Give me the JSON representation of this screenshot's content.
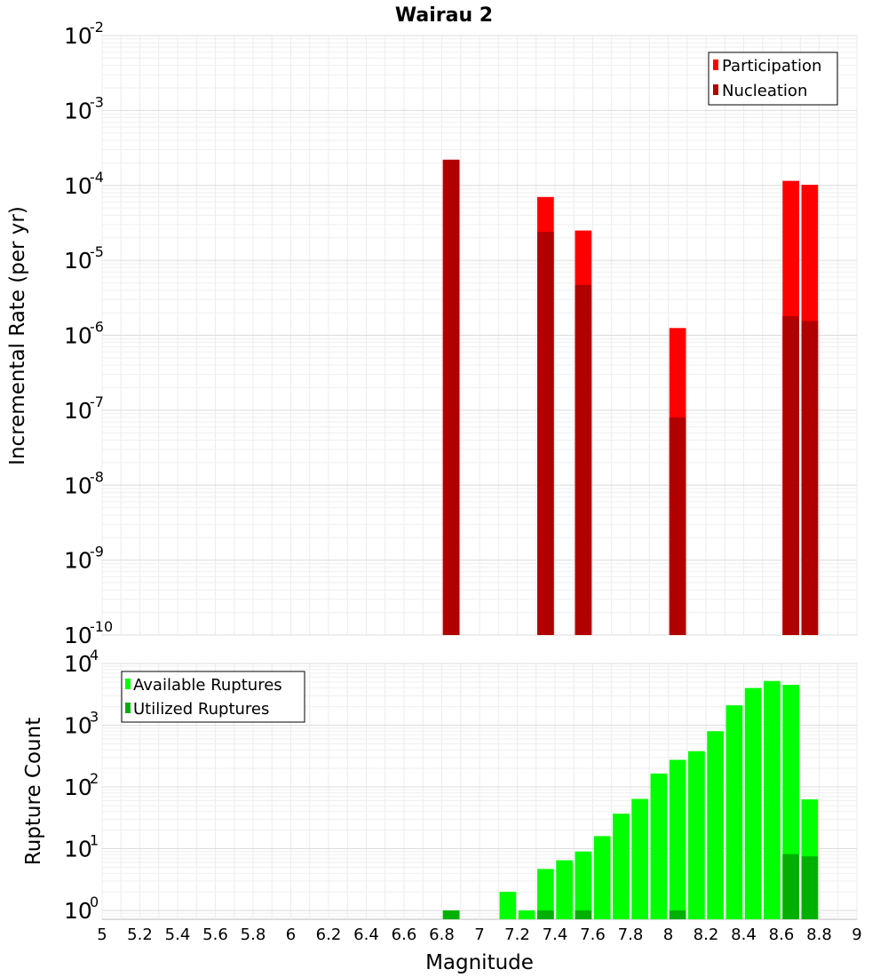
{
  "title": "Wairau 2",
  "x_axis": {
    "label": "Magnitude",
    "min": 5,
    "max": 9,
    "ticks": [
      "5",
      "5.2",
      "5.4",
      "5.6",
      "5.8",
      "6",
      "6.2",
      "6.4",
      "6.6",
      "6.8",
      "7",
      "7.2",
      "7.4",
      "7.6",
      "7.8",
      "8",
      "8.2",
      "8.4",
      "8.6",
      "8.8",
      "9"
    ]
  },
  "chart_data": [
    {
      "type": "bar",
      "panel": "top",
      "ylabel": "Incremental Rate (per yr)",
      "yscale": "log",
      "ylim": [
        1e-10,
        0.01
      ],
      "ytick_exponents": [
        "-10",
        "-9",
        "-8",
        "-7",
        "-6",
        "-5",
        "-4",
        "-3",
        "-2"
      ],
      "legend": {
        "placement": "top-right",
        "entries": [
          "Participation",
          "Nucleation"
        ]
      },
      "grid": true,
      "series": [
        {
          "name": "Participation",
          "color": "#ff0000",
          "x": [
            6.85,
            7.35,
            7.55,
            8.05,
            8.65,
            8.75
          ],
          "values": [
            0.00022,
            7e-05,
            2.5e-05,
            1.25e-06,
            0.000115,
            0.000102
          ]
        },
        {
          "name": "Nucleation",
          "color": "#b00000",
          "x": [
            6.85,
            7.35,
            7.55,
            8.05,
            8.65,
            8.75
          ],
          "values": [
            0.00022,
            2.4e-05,
            4.7e-06,
            8e-08,
            1.8e-06,
            1.55e-06
          ]
        }
      ]
    },
    {
      "type": "bar",
      "panel": "bottom",
      "ylabel": "Rupture Count",
      "yscale": "log",
      "ylim": [
        0.72,
        10000
      ],
      "ytick_exponents": [
        "0",
        "1",
        "2",
        "3",
        "4"
      ],
      "legend": {
        "placement": "top-left",
        "entries": [
          "Available Ruptures",
          "Utilized Ruptures"
        ]
      },
      "grid": true,
      "series": [
        {
          "name": "Available Ruptures",
          "color": "#00ff00",
          "x": [
            6.85,
            7.15,
            7.25,
            7.35,
            7.45,
            7.55,
            7.65,
            7.75,
            7.85,
            7.95,
            8.05,
            8.15,
            8.25,
            8.35,
            8.45,
            8.55,
            8.65,
            8.75
          ],
          "values": [
            1,
            2,
            1,
            4.7,
            6.5,
            9,
            16,
            37,
            64,
            165,
            275,
            380,
            800,
            2100,
            4000,
            5200,
            4500,
            63
          ]
        },
        {
          "name": "Utilized Ruptures",
          "color": "#00b000",
          "x": [
            6.85,
            7.35,
            7.55,
            8.05,
            8.65,
            8.75
          ],
          "values": [
            1,
            1,
            1,
            1,
            8.2,
            7.5
          ]
        }
      ]
    }
  ]
}
